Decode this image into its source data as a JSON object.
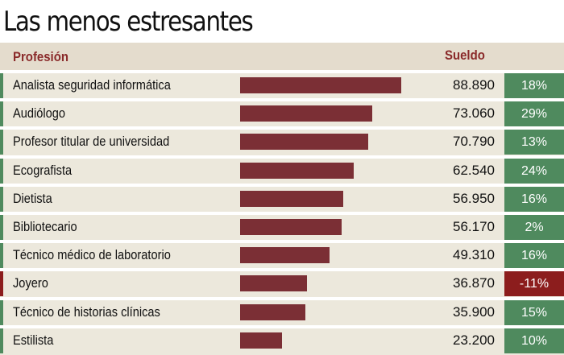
{
  "title": "Las menos estresantes",
  "header": {
    "profession": "Profesión",
    "salary": "Sueldo"
  },
  "colors": {
    "bar": "#7b2f35",
    "positive": "#4f8a5e",
    "negative": "#8c1d1d",
    "stripe_green": "#4f8a5e",
    "stripe_red": "#8c1d1d"
  },
  "chart_data": {
    "type": "bar",
    "title": "Las menos estresantes",
    "xlabel": "",
    "ylabel": "Sueldo",
    "categories": [
      "Analista seguridad informática",
      "Audiólogo",
      "Profesor titular de universidad",
      "Ecografista",
      "Dietista",
      "Bibliotecario",
      "Técnico médico de laboratorio",
      "Joyero",
      "Técnico de historias clínicas",
      "Estilista"
    ],
    "values": [
      88890,
      73060,
      70790,
      62540,
      56950,
      56170,
      49310,
      36870,
      35900,
      23200
    ],
    "value_labels": [
      "88.890",
      "73.060",
      "70.790",
      "62.540",
      "56.950",
      "56.170",
      "49.310",
      "36.870",
      "35.900",
      "23.200"
    ],
    "change_labels": [
      "18%",
      "29%",
      "13%",
      "24%",
      "16%",
      "2%",
      "16%",
      "-11%",
      "15%",
      "10%"
    ],
    "change_values": [
      18,
      29,
      13,
      24,
      16,
      2,
      16,
      -11,
      15,
      10
    ],
    "xlim": [
      0,
      88890
    ]
  }
}
